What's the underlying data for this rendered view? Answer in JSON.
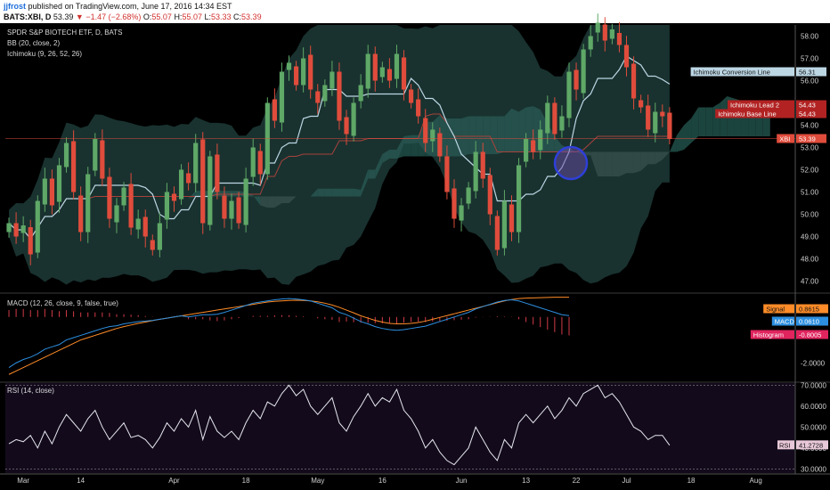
{
  "header": {
    "author": "jjfrost",
    "published": "published on TradingView.com, June 17, 2016 14:34 EST",
    "symbol": "BATS:XBI, D",
    "last": "53.39",
    "change": "▼ −1.47 (−2.68%)",
    "open_label": "O:",
    "open": "55.07",
    "high_label": "H:",
    "high": "55.07",
    "low_label": "L:",
    "low": "53.33",
    "close_label": "C:",
    "close": "53.39"
  },
  "overlays": {
    "title": "SPDR S&P BIOTECH ETF, D, BATS",
    "bb": "BB (20, close, 2)",
    "ichimoku": "Ichimoku (9, 26, 52, 26)"
  },
  "colors": {
    "up": "#5fa867",
    "down": "#e04c3c",
    "kumo_bull": "#1f4b45",
    "kumo_bear": "#3a3a3a",
    "bb_fill": "#2d5b55",
    "conversion": "#bcd6e4",
    "base": "#a8423e",
    "macd": "#2d8fe0",
    "signal": "#ff8c28",
    "hist": "#d23c48",
    "rsi": "#e6e6ee",
    "rsi_bg": "#130b1c"
  },
  "chart_data": [
    {
      "type": "candlestick",
      "title": "SPDR S&P BIOTECH ETF, D, BATS",
      "ylim": [
        46.5,
        58.5
      ],
      "yticks": [
        "58.00",
        "57.00",
        "56.00",
        "55.00",
        "54.00",
        "53.00",
        "52.00",
        "51.00",
        "50.00",
        "49.00",
        "48.00",
        "47.00"
      ],
      "ytick_values": [
        58,
        57,
        56,
        55,
        54,
        53,
        52,
        51,
        50,
        49,
        48,
        47
      ],
      "close": [
        49.6,
        49.0,
        49.5,
        48.2,
        50.6,
        51.6,
        50.4,
        52.2,
        53.2,
        51.0,
        49.2,
        51.8,
        53.4,
        51.6,
        49.8,
        50.4,
        51.2,
        49.4,
        49.8,
        49.0,
        48.4,
        49.6,
        51.0,
        50.6,
        52.0,
        51.4,
        53.2,
        49.6,
        52.6,
        51.0,
        49.8,
        50.6,
        49.6,
        51.6,
        53.0,
        51.8,
        55.0,
        54.2,
        56.4,
        56.8,
        55.8,
        57.0,
        55.6,
        55.0,
        55.8,
        56.4,
        54.2,
        53.6,
        55.0,
        55.8,
        57.2,
        56.0,
        56.6,
        56.0,
        57.2,
        55.6,
        55.0,
        54.4,
        53.2,
        53.8,
        52.6,
        51.0,
        49.8,
        50.4,
        51.2,
        52.8,
        51.6,
        50.0,
        48.4,
        50.6,
        49.2,
        52.2,
        53.4,
        52.8,
        53.8,
        55.0,
        53.6,
        54.4,
        56.4,
        55.6,
        57.4,
        58.0,
        58.6,
        57.8,
        58.3,
        57.6,
        56.6,
        55.2,
        54.8,
        53.8,
        54.6,
        54.4,
        53.39
      ],
      "labels": [
        {
          "text": "Ichimoku Conversion Line",
          "value": "56.31"
        },
        {
          "text": "Ichimoku Lead 2",
          "value": "54.43"
        },
        {
          "text": "Ichimoku Base Line",
          "value": "54.43"
        },
        {
          "text": "XBI",
          "value": "53.39"
        }
      ]
    },
    {
      "type": "line",
      "title": "MACD (12, 26, close, 9, false, true)",
      "ylim": [
        -2.8,
        1.0
      ],
      "yticks": [
        "-2.0000"
      ],
      "ytick_values": [
        -2.0
      ],
      "series": [
        {
          "name": "Signal",
          "last": "0.8615"
        },
        {
          "name": "MACD",
          "last": "0.0610"
        },
        {
          "name": "Histogram",
          "last": "-0.8005"
        }
      ],
      "macd": [
        -2.2,
        -2.0,
        -1.85,
        -1.75,
        -1.6,
        -1.4,
        -1.3,
        -1.2,
        -1.0,
        -0.9,
        -0.8,
        -0.7,
        -0.6,
        -0.5,
        -0.42,
        -0.38,
        -0.3,
        -0.25,
        -0.2,
        -0.18,
        -0.15,
        -0.1,
        -0.05,
        0.0,
        0.05,
        0.0,
        0.05,
        0.1,
        0.1,
        0.12,
        0.2,
        0.3,
        0.4,
        0.5,
        0.6,
        0.65,
        0.7,
        0.75,
        0.78,
        0.8,
        0.78,
        0.75,
        0.7,
        0.6,
        0.5,
        0.4,
        0.2,
        0.1,
        -0.05,
        -0.2,
        -0.3,
        -0.42,
        -0.5,
        -0.55,
        -0.58,
        -0.55,
        -0.5,
        -0.45,
        -0.4,
        -0.3,
        -0.2,
        -0.1,
        0.0,
        0.1,
        0.2,
        0.35,
        0.45,
        0.55,
        0.65,
        0.72,
        0.75,
        0.7,
        0.6,
        0.5,
        0.4,
        0.3,
        0.2,
        0.1,
        0.061
      ],
      "signal": [
        -2.5,
        -2.35,
        -2.2,
        -2.05,
        -1.9,
        -1.75,
        -1.6,
        -1.45,
        -1.3,
        -1.15,
        -1.0,
        -0.9,
        -0.8,
        -0.7,
        -0.6,
        -0.5,
        -0.42,
        -0.35,
        -0.28,
        -0.22,
        -0.16,
        -0.1,
        -0.05,
        0.0,
        0.05,
        0.1,
        0.15,
        0.2,
        0.25,
        0.3,
        0.35,
        0.4,
        0.45,
        0.5,
        0.55,
        0.6,
        0.65,
        0.68,
        0.7,
        0.72,
        0.73,
        0.72,
        0.7,
        0.66,
        0.6,
        0.52,
        0.42,
        0.3,
        0.18,
        0.05,
        -0.05,
        -0.15,
        -0.22,
        -0.28,
        -0.3,
        -0.3,
        -0.28,
        -0.24,
        -0.18,
        -0.1,
        -0.02,
        0.06,
        0.14,
        0.22,
        0.3,
        0.38,
        0.46,
        0.54,
        0.62,
        0.7,
        0.76,
        0.8,
        0.82,
        0.83,
        0.84,
        0.85,
        0.86,
        0.86,
        0.8615
      ]
    },
    {
      "type": "line",
      "title": "RSI (14, close)",
      "ylim": [
        28,
        71
      ],
      "yticks": [
        "70.0000",
        "60.0000",
        "50.0000",
        "40.0000",
        "30.0000"
      ],
      "ytick_values": [
        70,
        60,
        50,
        40,
        30
      ],
      "series": [
        {
          "name": "RSI",
          "last": "41.2728"
        }
      ],
      "values": [
        42,
        44,
        43,
        46,
        40,
        48,
        42,
        50,
        56,
        52,
        48,
        54,
        58,
        50,
        44,
        48,
        52,
        45,
        46,
        44,
        40,
        45,
        52,
        48,
        54,
        50,
        58,
        44,
        55,
        48,
        45,
        48,
        44,
        52,
        58,
        54,
        62,
        60,
        66,
        70,
        65,
        68,
        60,
        56,
        60,
        64,
        52,
        48,
        55,
        60,
        66,
        60,
        64,
        62,
        68,
        58,
        54,
        48,
        40,
        44,
        38,
        34,
        32,
        36,
        40,
        50,
        44,
        38,
        34,
        44,
        40,
        52,
        56,
        52,
        56,
        60,
        54,
        58,
        64,
        60,
        66,
        68,
        70,
        64,
        66,
        62,
        56,
        50,
        48,
        44,
        46,
        46,
        41.27
      ]
    }
  ],
  "xaxis": {
    "labels": [
      {
        "text": "Mar",
        "i": 2
      },
      {
        "text": "14",
        "i": 10
      },
      {
        "text": "Apr",
        "i": 23
      },
      {
        "text": "18",
        "i": 33
      },
      {
        "text": "May",
        "i": 43
      },
      {
        "text": "16",
        "i": 52
      },
      {
        "text": "Jun",
        "i": 63
      },
      {
        "text": "13",
        "i": 72
      },
      {
        "text": "22",
        "i": 79
      },
      {
        "text": "Jul",
        "i": 86
      },
      {
        "text": "18",
        "i": 95
      },
      {
        "text": "Aug",
        "i": 104
      }
    ]
  }
}
